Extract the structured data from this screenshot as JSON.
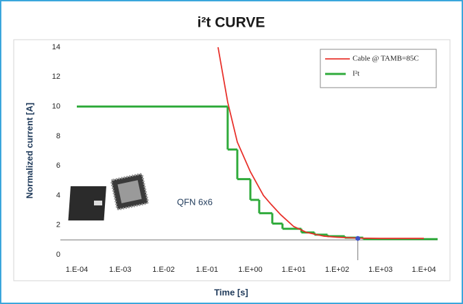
{
  "chart_data": {
    "type": "line",
    "title": "i²t CURVE",
    "x_label": "Time [s]",
    "y_label": "Normalized current [A]",
    "annotation": "QFN 6x6",
    "log_x": true,
    "xlim": [
      0.0001,
      10000
    ],
    "xticks": [
      {
        "value": 0.0001,
        "label": "1.E-04"
      },
      {
        "value": 0.001,
        "label": "1.E-03"
      },
      {
        "value": 0.01,
        "label": "1.E-02"
      },
      {
        "value": 0.1,
        "label": "1.E-01"
      },
      {
        "value": 1,
        "label": "1.E+00"
      },
      {
        "value": 10,
        "label": "1.E+01"
      },
      {
        "value": 100,
        "label": "1.E+02"
      },
      {
        "value": 1000,
        "label": "1.E+03"
      },
      {
        "value": 10000,
        "label": "1.E+04"
      }
    ],
    "ylim": [
      0,
      14
    ],
    "yticks": [
      0,
      2,
      4,
      6,
      8,
      10,
      12,
      14
    ],
    "hline": 1,
    "marker": {
      "x": 300,
      "y": 1.1,
      "color": "#3f51c8"
    },
    "series": [
      {
        "name": "Cable  @ TAMB=85C",
        "color": "#e8302a",
        "style": "line",
        "x": [
          0.18,
          0.3,
          0.5,
          1,
          2,
          3,
          5,
          10,
          20,
          50,
          100,
          300,
          1000,
          10000
        ],
        "values": [
          14,
          10.3,
          7.6,
          5.6,
          4,
          3.4,
          2.7,
          1.9,
          1.5,
          1.25,
          1.18,
          1.12,
          1.1,
          1.1
        ]
      },
      {
        "name": "I²t",
        "color": "#2eaa3a",
        "style": "step",
        "x": [
          0.0001,
          0.3,
          0.5,
          1,
          1.6,
          3.2,
          5.5,
          15,
          30,
          60,
          150,
          400
        ],
        "values": [
          10,
          7.1,
          5.1,
          3.7,
          2.8,
          2.1,
          1.75,
          1.5,
          1.35,
          1.25,
          1.15,
          1.05
        ]
      }
    ]
  }
}
